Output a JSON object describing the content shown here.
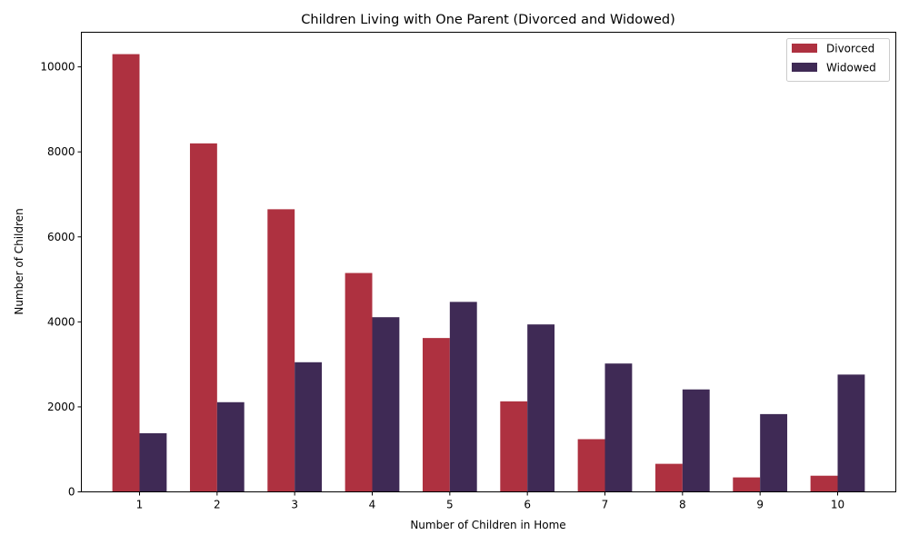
{
  "chart_data": {
    "type": "bar",
    "title": "Children Living with One Parent (Divorced and Widowed)",
    "xlabel": "Number of Children in Home",
    "ylabel": "Number of Children",
    "categories": [
      "1",
      "2",
      "3",
      "4",
      "5",
      "6",
      "7",
      "8",
      "9",
      "10"
    ],
    "series": [
      {
        "name": "Divorced",
        "color": "#ae3140",
        "values": [
          10300,
          8200,
          6650,
          5150,
          3620,
          2130,
          1240,
          660,
          340,
          380
        ]
      },
      {
        "name": "Widowed",
        "color": "#3f2a55",
        "values": [
          1380,
          2110,
          3050,
          4110,
          4470,
          3940,
          3020,
          2410,
          1830,
          2760
        ]
      }
    ],
    "ylim": [
      0,
      10815
    ],
    "yticks": [
      0,
      2000,
      4000,
      6000,
      8000,
      10000
    ],
    "legend_position": "top-right",
    "grid": false
  }
}
